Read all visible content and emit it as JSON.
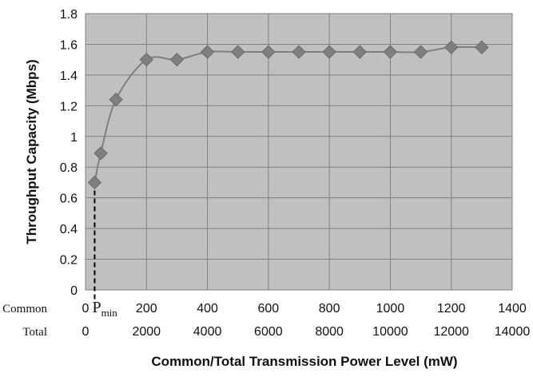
{
  "chart_data": {
    "type": "line",
    "title": "",
    "xlabel": "Common/Total Transmission Power Level (mW)",
    "ylabel": "Throughput Capacity (Mbps)",
    "ylim": [
      0,
      1.8
    ],
    "xlim": [
      0,
      1400
    ],
    "y_ticks": [
      "0",
      "0.2",
      "0.4",
      "0.6",
      "0.8",
      "1",
      "1.2",
      "1.4",
      "1.6",
      "1.8"
    ],
    "x_rows": [
      {
        "label": "Common",
        "ticks": [
          "0",
          "200",
          "400",
          "600",
          "800",
          "1000",
          "1200",
          "1400"
        ]
      },
      {
        "label": "Total",
        "ticks": [
          "0",
          "2000",
          "4000",
          "6000",
          "8000",
          "10000",
          "12000",
          "14000"
        ]
      }
    ],
    "x_tick_values": [
      0,
      200,
      400,
      600,
      800,
      1000,
      1200,
      1400
    ],
    "annotation": {
      "label": "P",
      "subscript": "min",
      "x": 30,
      "y": 0.7,
      "style": "dashed"
    },
    "grid": true,
    "plot_background": "#c0c0c0",
    "series": [
      {
        "marker": "diamond",
        "color": "#7f7f7f",
        "points": [
          {
            "x": 30,
            "y": 0.7
          },
          {
            "x": 50,
            "y": 0.89
          },
          {
            "x": 100,
            "y": 1.24
          },
          {
            "x": 200,
            "y": 1.5
          },
          {
            "x": 300,
            "y": 1.5
          },
          {
            "x": 400,
            "y": 1.55
          },
          {
            "x": 500,
            "y": 1.55
          },
          {
            "x": 600,
            "y": 1.55
          },
          {
            "x": 700,
            "y": 1.55
          },
          {
            "x": 800,
            "y": 1.55
          },
          {
            "x": 900,
            "y": 1.55
          },
          {
            "x": 1000,
            "y": 1.55
          },
          {
            "x": 1100,
            "y": 1.55
          },
          {
            "x": 1200,
            "y": 1.58
          },
          {
            "x": 1300,
            "y": 1.58
          }
        ]
      }
    ]
  }
}
